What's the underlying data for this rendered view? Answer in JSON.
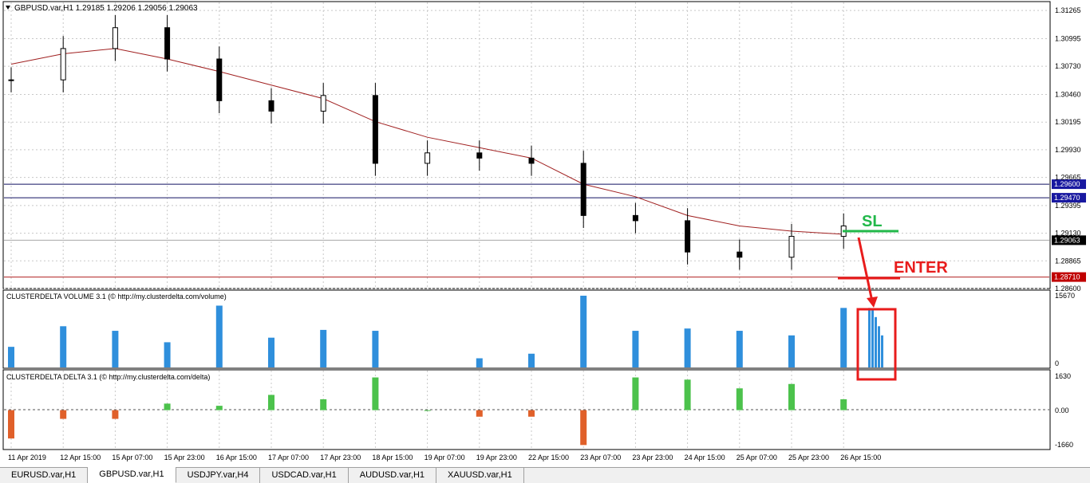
{
  "header": {
    "symbol_title": "GBPUSD.var,H1  1.29185 1.29206 1.29056 1.29063",
    "menu_icon": "triangle-down-icon"
  },
  "main_chart": {
    "price_ticks": [
      "1.31265",
      "1.30995",
      "1.30730",
      "1.30460",
      "1.30195",
      "1.29930",
      "1.29665",
      "1.29395",
      "1.29130",
      "1.28865",
      "1.28600"
    ],
    "price_range": [
      1.286,
      1.3135
    ],
    "price_labels": [
      {
        "name": "level-1",
        "value": 1.296,
        "text": "1.29600",
        "bg": "#1818a0",
        "fg": "#ffffff"
      },
      {
        "name": "level-2",
        "value": 1.2947,
        "text": "1.29470",
        "bg": "#1818a0",
        "fg": "#ffffff"
      },
      {
        "name": "current",
        "value": 1.29063,
        "text": "1.29063",
        "bg": "#000000",
        "fg": "#ffffff"
      },
      {
        "name": "level-3",
        "value": 1.2871,
        "text": "1.28710",
        "bg": "#c00000",
        "fg": "#ffffff"
      }
    ],
    "annotations": {
      "sl_text": "SL",
      "sl_color": "#22b84a",
      "enter_text": "ENTER",
      "enter_color": "#e81c1c"
    },
    "colors": {
      "ma": "#a02020",
      "candle": "#000000",
      "grid": "#c8c8c8",
      "hline": "#101060",
      "red_line": "#b02020"
    }
  },
  "volume_panel": {
    "title": "CLUSTERDELTA VOLUME 3.1 (© http://my.clusterdelta.com/volume)",
    "ticks": [
      "15670",
      "0"
    ],
    "color": "#2f8fdc"
  },
  "delta_panel": {
    "title": "CLUSTERDELTA DELTA 3.1 (© http://my.clusterdelta.com/delta)",
    "ticks": [
      "1630",
      "0.00",
      "-1660"
    ],
    "pos_color": "#4cc24c",
    "neg_color": "#e0602a"
  },
  "time_axis": [
    "11 Apr 2019",
    "12 Apr 15:00",
    "15 Apr 07:00",
    "15 Apr 23:00",
    "16 Apr 15:00",
    "17 Apr 07:00",
    "17 Apr 23:00",
    "18 Apr 15:00",
    "19 Apr 07:00",
    "19 Apr 23:00",
    "22 Apr 15:00",
    "23 Apr 07:00",
    "23 Apr 23:00",
    "24 Apr 15:00",
    "25 Apr 07:00",
    "25 Apr 23:00",
    "26 Apr 15:00"
  ],
  "tabs": [
    {
      "label": "EURUSD.var,H1",
      "active": false
    },
    {
      "label": "GBPUSD.var,H1",
      "active": true
    },
    {
      "label": "USDJPY.var,H4",
      "active": false
    },
    {
      "label": "USDCAD.var,H1",
      "active": false
    },
    {
      "label": "AUDUSD.var,H1",
      "active": false
    },
    {
      "label": "XAUUSD.var,H1",
      "active": false
    }
  ],
  "chart_data": {
    "type": "line",
    "title": "GBPUSD.var,H1  1.29185 1.29206 1.29056 1.29063",
    "x": [
      "11 Apr 2019",
      "12 Apr 15:00",
      "15 Apr 07:00",
      "15 Apr 23:00",
      "16 Apr 15:00",
      "17 Apr 07:00",
      "17 Apr 23:00",
      "18 Apr 15:00",
      "19 Apr 07:00",
      "19 Apr 23:00",
      "22 Apr 15:00",
      "23 Apr 07:00",
      "23 Apr 23:00",
      "24 Apr 15:00",
      "25 Apr 07:00",
      "25 Apr 23:00",
      "26 Apr 15:00"
    ],
    "ylim": [
      1.286,
      1.3135
    ],
    "series": [
      {
        "values": [
          1.306,
          1.309,
          1.311,
          1.308,
          1.304,
          1.303,
          1.3045,
          1.298,
          1.299,
          1.2985,
          1.298,
          1.293,
          1.2925,
          1.2895,
          1.289,
          1.291,
          1.292
        ]
      },
      {
        "values": [
          1.3075,
          1.3085,
          1.309,
          1.308,
          1.3068,
          1.3055,
          1.3042,
          1.302,
          1.3005,
          1.2995,
          1.2985,
          1.296,
          1.2948,
          1.293,
          1.292,
          1.2915,
          1.2912
        ]
      }
    ],
    "volume": [
      4500,
      9000,
      8000,
      5500,
      13500,
      6500,
      8200,
      8000,
      0,
      2000,
      3000,
      15670,
      8000,
      8500,
      8000,
      7000,
      13000
    ],
    "delta": [
      -1300,
      -400,
      -400,
      300,
      200,
      700,
      500,
      1500,
      0,
      -300,
      -300,
      -1600,
      1500,
      1400,
      1000,
      1200,
      500
    ],
    "volume_ylim": [
      0,
      15670
    ],
    "delta_ylim": [
      -1660,
      1630
    ]
  }
}
